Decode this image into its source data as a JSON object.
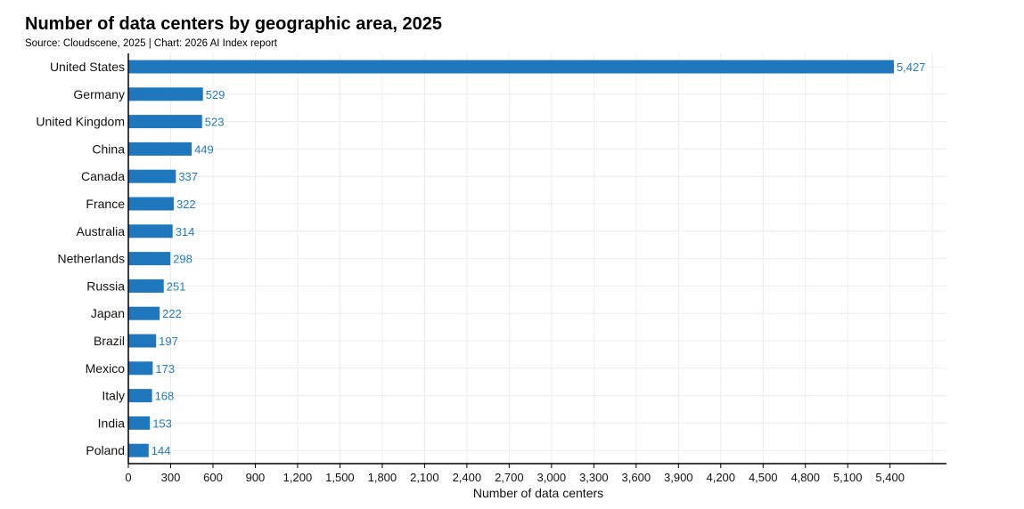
{
  "header": {
    "title": "Number of data centers by geographic area, 2025",
    "subtitle": "Source: Cloudscene, 2025 | Chart: 2026 AI Index report"
  },
  "chart_data": {
    "type": "bar",
    "orientation": "horizontal",
    "title": "Number of data centers by geographic area, 2025",
    "subtitle": "Source: Cloudscene, 2025 | Chart: 2026 AI Index report",
    "xlabel": "Number of data centers",
    "ylabel": "",
    "xlim": [
      0,
      5800
    ],
    "xticks": [
      0,
      300,
      600,
      900,
      1200,
      1500,
      1800,
      2100,
      2400,
      2700,
      3000,
      3300,
      3600,
      3900,
      4200,
      4500,
      4800,
      5100,
      5400
    ],
    "xtick_labels": [
      "0",
      "300",
      "600",
      "900",
      "1,200",
      "1,500",
      "1,800",
      "2,100",
      "2,400",
      "2,700",
      "3,000",
      "3,300",
      "3,600",
      "3,900",
      "4,200",
      "4,500",
      "4,800",
      "5,100",
      "5,400"
    ],
    "grid": true,
    "bar_color": "#1f77bd",
    "label_color": "#1f7bc1",
    "categories": [
      "United States",
      "Germany",
      "United Kingdom",
      "China",
      "Canada",
      "France",
      "Australia",
      "Netherlands",
      "Russia",
      "Japan",
      "Brazil",
      "Mexico",
      "Italy",
      "India",
      "Poland"
    ],
    "values": [
      5427,
      529,
      523,
      449,
      337,
      322,
      314,
      298,
      251,
      222,
      197,
      173,
      168,
      153,
      144
    ],
    "value_labels": [
      "5,427",
      "529",
      "523",
      "449",
      "337",
      "322",
      "314",
      "298",
      "251",
      "222",
      "197",
      "173",
      "168",
      "153",
      "144"
    ]
  }
}
